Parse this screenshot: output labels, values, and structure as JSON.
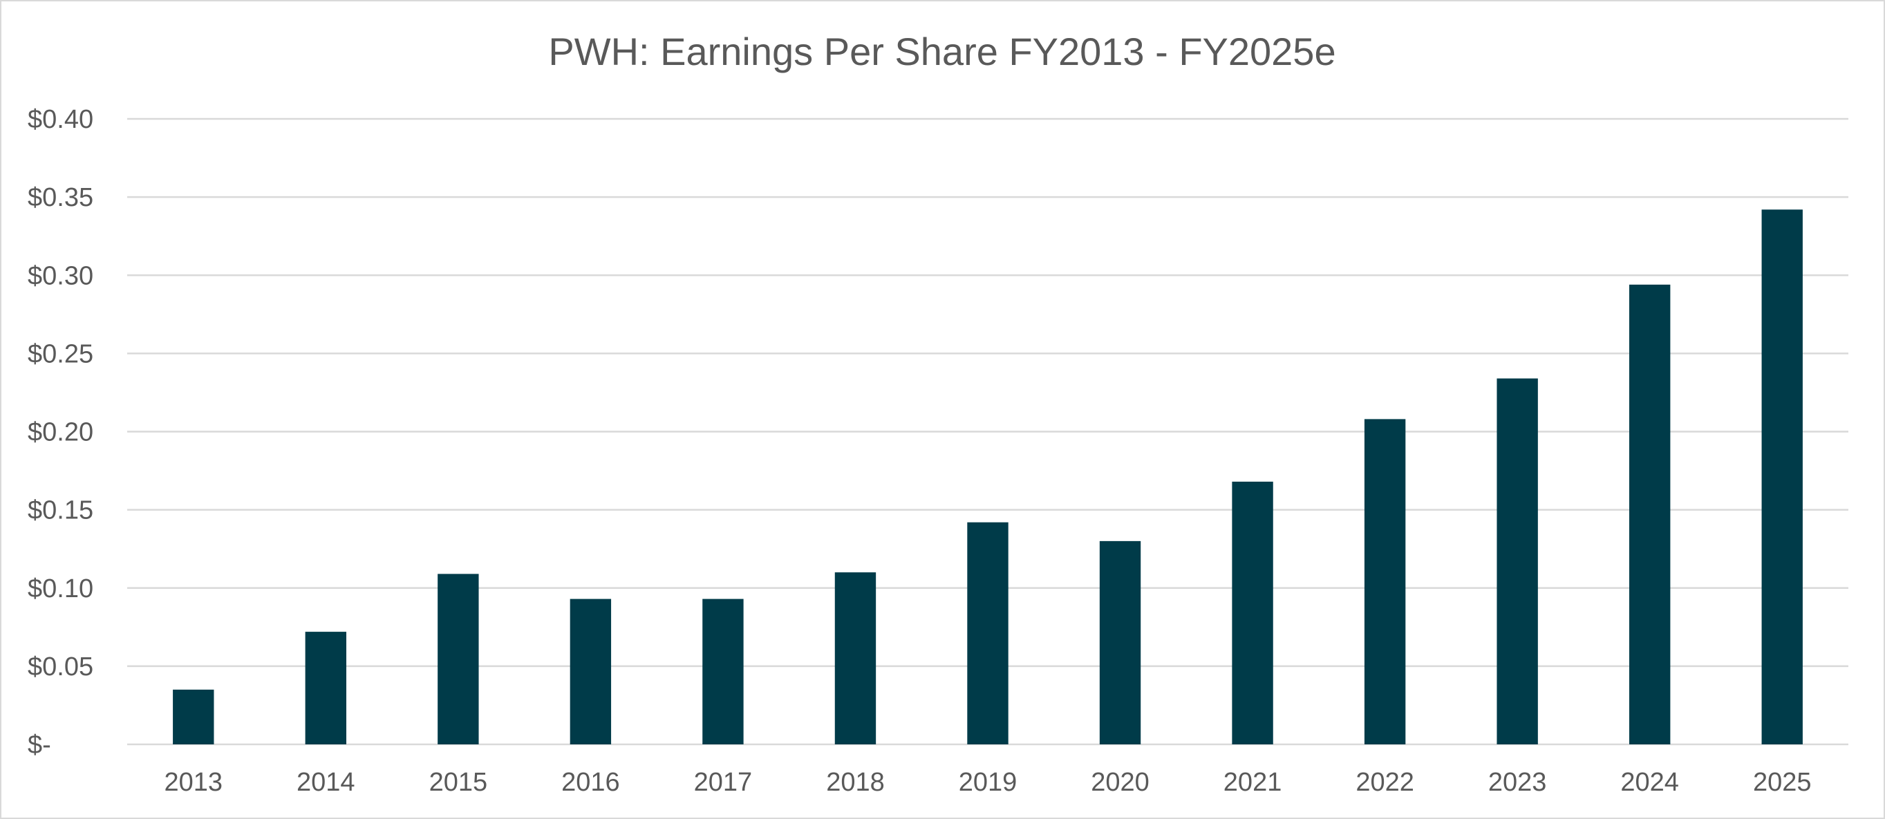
{
  "chart_data": {
    "type": "bar",
    "title": "PWH: Earnings Per Share FY2013 - FY2025e",
    "xlabel": "",
    "ylabel": "",
    "ylim": [
      0,
      0.4
    ],
    "grid": true,
    "legend": "none",
    "bar_color": "#003B49",
    "y_ticks": [
      {
        "value": 0,
        "label": "$-"
      },
      {
        "value": 0.05,
        "label": "$0.05"
      },
      {
        "value": 0.1,
        "label": "$0.10"
      },
      {
        "value": 0.15,
        "label": "$0.15"
      },
      {
        "value": 0.2,
        "label": "$0.20"
      },
      {
        "value": 0.25,
        "label": "$0.25"
      },
      {
        "value": 0.3,
        "label": "$0.30"
      },
      {
        "value": 0.35,
        "label": "$0.35"
      },
      {
        "value": 0.4,
        "label": "$0.40"
      }
    ],
    "categories": [
      "2013",
      "2014",
      "2015",
      "2016",
      "2017",
      "2018",
      "2019",
      "2020",
      "2021",
      "2022",
      "2023",
      "2024",
      "2025"
    ],
    "values": [
      0.035,
      0.072,
      0.109,
      0.093,
      0.093,
      0.11,
      0.142,
      0.13,
      0.168,
      0.208,
      0.234,
      0.294,
      0.342
    ]
  }
}
